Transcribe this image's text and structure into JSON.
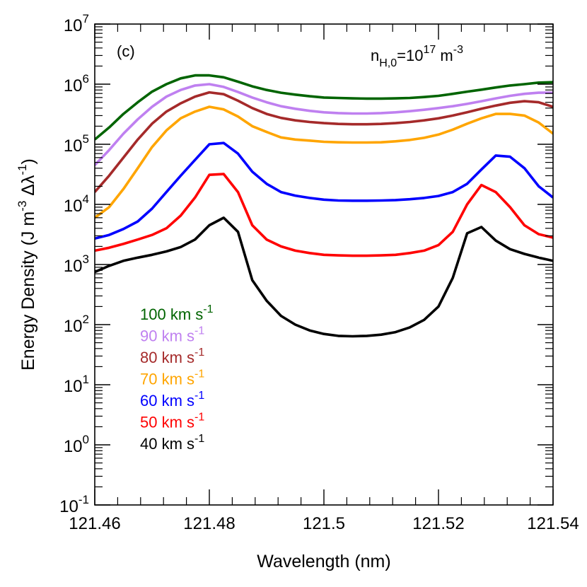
{
  "chart_data": {
    "type": "line",
    "panel_label": "(c)",
    "annotation": {
      "text": "n",
      "sub": "H,0",
      "mid": "=10",
      "sup": "17",
      "tail": " m",
      "tail_sup": "-3"
    },
    "xlabel": "Wavelength (nm)",
    "ylabel": {
      "main": "Energy Density (J m",
      "sup1": "-3",
      "mid": " Δλ",
      "sup2": "-1",
      "end": ")"
    },
    "xlim": [
      121.46,
      121.54
    ],
    "ylim_log10": [
      -1,
      7
    ],
    "y_scale": "log",
    "grid": false,
    "legend_placement": "lower-left",
    "x_ticks": [
      121.46,
      121.48,
      121.5,
      121.52,
      121.54
    ],
    "x_tick_labels": [
      "121.46",
      "121.48",
      "121.5",
      "121.52",
      "121.54"
    ],
    "y_ticks": [
      {
        "base": "10",
        "exp": "-1"
      },
      {
        "base": "10",
        "exp": "0"
      },
      {
        "base": "10",
        "exp": "1"
      },
      {
        "base": "10",
        "exp": "2"
      },
      {
        "base": "10",
        "exp": "3"
      },
      {
        "base": "10",
        "exp": "4"
      },
      {
        "base": "10",
        "exp": "5"
      },
      {
        "base": "10",
        "exp": "6"
      },
      {
        "base": "10",
        "exp": "7"
      }
    ],
    "x": [
      121.46,
      121.4625,
      121.465,
      121.4675,
      121.47,
      121.4725,
      121.475,
      121.4775,
      121.48,
      121.4825,
      121.485,
      121.4875,
      121.49,
      121.4925,
      121.495,
      121.4975,
      121.5,
      121.5025,
      121.505,
      121.5075,
      121.51,
      121.5125,
      121.515,
      121.5175,
      121.52,
      121.5225,
      121.525,
      121.5275,
      121.53,
      121.5325,
      121.535,
      121.5375,
      121.54
    ],
    "series": [
      {
        "name": "100 km s",
        "sup": "-1",
        "color": "#006400",
        "values": [
          120000,
          190000,
          320000,
          500000,
          750000,
          1000000,
          1250000,
          1400000,
          1400000,
          1300000,
          1100000,
          920000,
          800000,
          720000,
          670000,
          630000,
          600000,
          590000,
          580000,
          575000,
          575000,
          580000,
          590000,
          610000,
          640000,
          690000,
          750000,
          810000,
          880000,
          950000,
          1000000,
          1060000,
          1080000
        ]
      },
      {
        "name": "90 km s",
        "sup": "-1",
        "color": "#BF80F0",
        "values": [
          45000,
          80000,
          150000,
          260000,
          420000,
          620000,
          800000,
          950000,
          1000000,
          900000,
          740000,
          600000,
          500000,
          430000,
          390000,
          360000,
          340000,
          330000,
          325000,
          325000,
          330000,
          340000,
          355000,
          375000,
          400000,
          430000,
          470000,
          520000,
          580000,
          640000,
          690000,
          720000,
          720000
        ]
      },
      {
        "name": "80 km s",
        "sup": "-1",
        "color": "#A52A2A",
        "values": [
          16000,
          30000,
          60000,
          120000,
          220000,
          350000,
          480000,
          620000,
          730000,
          680000,
          530000,
          400000,
          320000,
          275000,
          250000,
          235000,
          225000,
          218000,
          215000,
          215000,
          218000,
          225000,
          235000,
          250000,
          270000,
          300000,
          340000,
          390000,
          440000,
          490000,
          520000,
          500000,
          420000
        ]
      },
      {
        "name": "70 km s",
        "sup": "-1",
        "color": "#FFA500",
        "values": [
          6000,
          9000,
          18000,
          40000,
          90000,
          170000,
          270000,
          350000,
          420000,
          380000,
          290000,
          200000,
          160000,
          130000,
          120000,
          115000,
          110000,
          108000,
          107000,
          107000,
          108000,
          112000,
          118000,
          128000,
          145000,
          175000,
          220000,
          270000,
          320000,
          320000,
          300000,
          230000,
          150000
        ]
      },
      {
        "name": "60 km s",
        "sup": "-1",
        "color": "#0000FF",
        "values": [
          2700,
          3100,
          3900,
          5200,
          8500,
          16000,
          30000,
          55000,
          100000,
          105000,
          70000,
          35000,
          22000,
          16000,
          14000,
          12800,
          12000,
          11600,
          11500,
          11500,
          11600,
          11800,
          12200,
          12800,
          13800,
          16000,
          22000,
          38000,
          65000,
          62000,
          40000,
          20000,
          13000
        ]
      },
      {
        "name": "50 km s",
        "sup": "-1",
        "color": "#FF0000",
        "values": [
          1700,
          1900,
          2200,
          2600,
          3100,
          4000,
          6500,
          13000,
          31000,
          32000,
          16000,
          4500,
          2600,
          2000,
          1700,
          1550,
          1450,
          1420,
          1400,
          1400,
          1420,
          1450,
          1550,
          1700,
          2100,
          3500,
          10000,
          21000,
          16000,
          9000,
          4500,
          3200,
          2800
        ]
      },
      {
        "name": "40 km s",
        "sup": "-1",
        "color": "#000000",
        "values": [
          750,
          950,
          1150,
          1300,
          1450,
          1650,
          1950,
          2600,
          4500,
          6000,
          3500,
          550,
          250,
          140,
          100,
          80,
          70,
          65,
          64,
          65,
          68,
          75,
          90,
          120,
          200,
          600,
          3300,
          4200,
          2500,
          1800,
          1500,
          1300,
          1150
        ]
      }
    ]
  }
}
